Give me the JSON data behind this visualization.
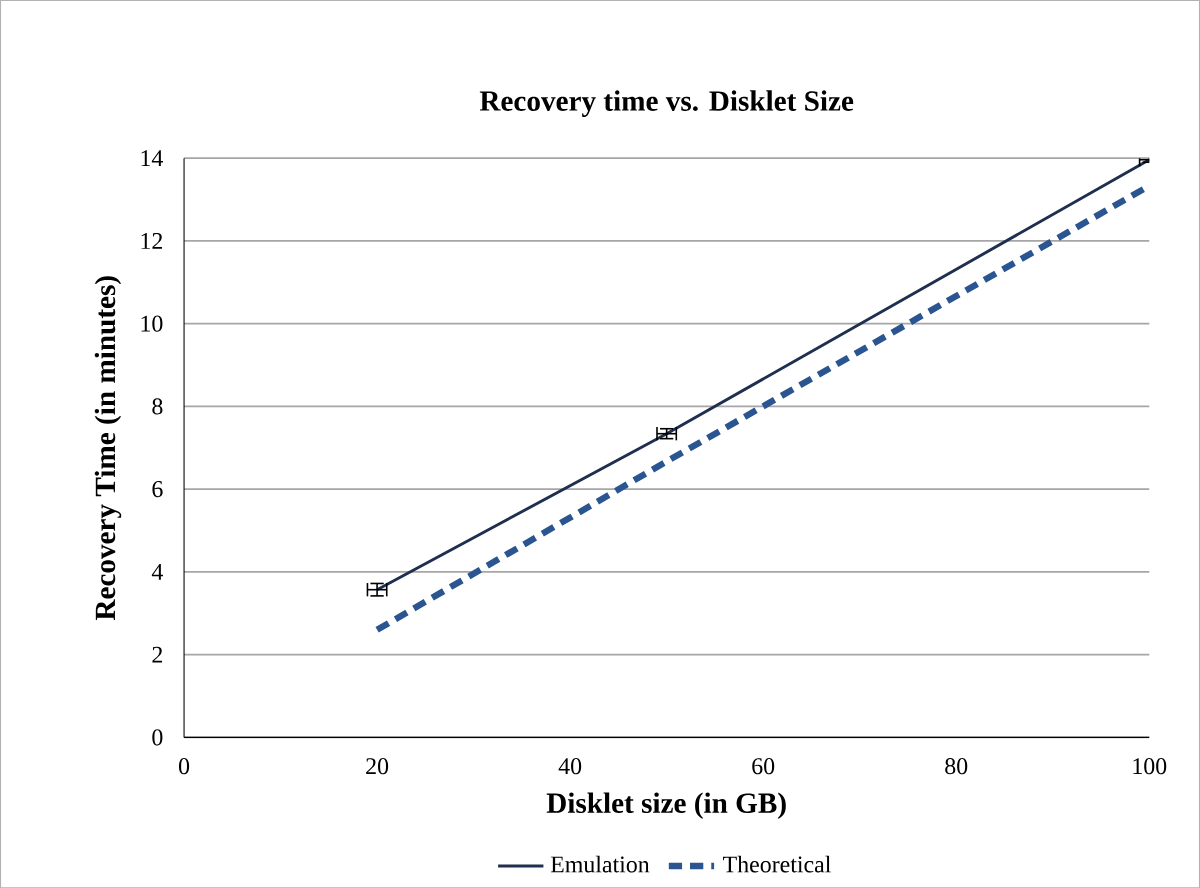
{
  "chart_data": {
    "type": "line",
    "title": "Recovery time vs. Disklet Size",
    "xlabel": "Disklet size (in GB)",
    "ylabel": "Recovery Time (in minutes)",
    "x": [
      20,
      50,
      100
    ],
    "series": [
      {
        "name": "Emulation",
        "color": "#1f2f4f",
        "values": [
          3.57,
          7.34,
          13.96
        ],
        "errors": [
          0.15,
          0.12,
          0.06
        ],
        "xerrors": [
          1,
          1,
          1
        ],
        "line_style": "solid"
      },
      {
        "name": "Theoretical",
        "color": "#2a5590",
        "values": [
          2.6,
          6.67,
          13.33
        ],
        "line_style": "dashed"
      }
    ],
    "xlim": [
      0,
      100
    ],
    "xticks": [
      0,
      20,
      40,
      60,
      80,
      100
    ],
    "ylim": [
      0,
      14
    ],
    "yticks": [
      0,
      2,
      4,
      6,
      8,
      10,
      12,
      14
    ],
    "grid": "y",
    "legend": "bottom",
    "marker": "none"
  }
}
